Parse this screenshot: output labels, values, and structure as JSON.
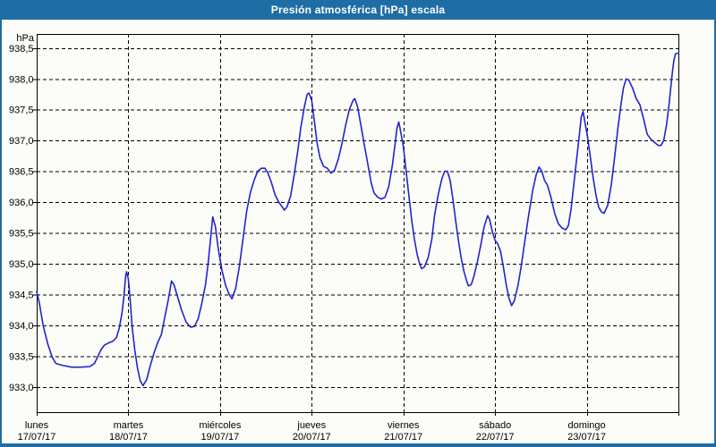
{
  "window": {
    "title": "Presión atmosférica [hPa] escala"
  },
  "colors": {
    "titlebar_bg": "#1E6EA5",
    "titlebar_text": "#FFFFFF",
    "window_border": "#1E6EA5",
    "chart_bg": "#FCFDF9",
    "line": "#2323CC",
    "grid": "#000000",
    "plot_border": "#000000",
    "axis_text": "#000000"
  },
  "chart_data": {
    "type": "line",
    "title": "Presión atmosférica [hPa] escala",
    "unit_label": "hPa",
    "xlabel": "",
    "ylabel": "hPa",
    "ylim": [
      932.59,
      938.73
    ],
    "grid": "dashed",
    "legend": "none",
    "yticks": [
      {
        "value": 938.5,
        "label": "938,5"
      },
      {
        "value": 938.0,
        "label": "938,0"
      },
      {
        "value": 937.5,
        "label": "937,5"
      },
      {
        "value": 937.0,
        "label": "937,0"
      },
      {
        "value": 936.5,
        "label": "936,5"
      },
      {
        "value": 936.0,
        "label": "936,0"
      },
      {
        "value": 935.5,
        "label": "935,5"
      },
      {
        "value": 935.0,
        "label": "935,0"
      },
      {
        "value": 934.5,
        "label": "934,5"
      },
      {
        "value": 934.0,
        "label": "934,0"
      },
      {
        "value": 933.5,
        "label": "933,5"
      },
      {
        "value": 933.0,
        "label": "933,0"
      }
    ],
    "days": [
      {
        "name": "lunes",
        "date": "17/07/17"
      },
      {
        "name": "martes",
        "date": "18/07/17"
      },
      {
        "name": "miércoles",
        "date": "19/07/17"
      },
      {
        "name": "jueves",
        "date": "20/07/17"
      },
      {
        "name": "viernes",
        "date": "21/07/17"
      },
      {
        "name": "sábado",
        "date": "22/07/17"
      },
      {
        "name": "domingo",
        "date": "23/07/17"
      }
    ],
    "series": [
      {
        "name": "Presión atmosférica",
        "points": [
          [
            0.0,
            934.55
          ],
          [
            0.03,
            934.35
          ],
          [
            0.07,
            934.0
          ],
          [
            0.12,
            933.7
          ],
          [
            0.17,
            933.48
          ],
          [
            0.21,
            933.38
          ],
          [
            0.28,
            933.35
          ],
          [
            0.38,
            933.32
          ],
          [
            0.48,
            933.32
          ],
          [
            0.58,
            933.33
          ],
          [
            0.63,
            933.38
          ],
          [
            0.67,
            933.5
          ],
          [
            0.7,
            933.6
          ],
          [
            0.74,
            933.68
          ],
          [
            0.78,
            933.71
          ],
          [
            0.83,
            933.74
          ],
          [
            0.87,
            933.8
          ],
          [
            0.9,
            933.95
          ],
          [
            0.93,
            934.2
          ],
          [
            0.95,
            934.45
          ],
          [
            0.97,
            934.8
          ],
          [
            0.98,
            934.87
          ],
          [
            1.0,
            934.75
          ],
          [
            1.02,
            934.4
          ],
          [
            1.04,
            934.0
          ],
          [
            1.07,
            933.6
          ],
          [
            1.1,
            933.3
          ],
          [
            1.13,
            933.1
          ],
          [
            1.16,
            933.02
          ],
          [
            1.2,
            933.12
          ],
          [
            1.24,
            933.35
          ],
          [
            1.28,
            933.55
          ],
          [
            1.32,
            933.72
          ],
          [
            1.36,
            933.85
          ],
          [
            1.4,
            934.15
          ],
          [
            1.44,
            934.45
          ],
          [
            1.47,
            934.72
          ],
          [
            1.5,
            934.65
          ],
          [
            1.54,
            934.45
          ],
          [
            1.58,
            934.25
          ],
          [
            1.63,
            934.05
          ],
          [
            1.68,
            933.97
          ],
          [
            1.72,
            933.98
          ],
          [
            1.76,
            934.1
          ],
          [
            1.8,
            934.35
          ],
          [
            1.84,
            934.65
          ],
          [
            1.87,
            935.0
          ],
          [
            1.9,
            935.45
          ],
          [
            1.92,
            935.76
          ],
          [
            1.95,
            935.6
          ],
          [
            1.98,
            935.25
          ],
          [
            2.02,
            934.9
          ],
          [
            2.06,
            934.65
          ],
          [
            2.1,
            934.5
          ],
          [
            2.13,
            934.43
          ],
          [
            2.17,
            934.6
          ],
          [
            2.21,
            934.95
          ],
          [
            2.25,
            935.4
          ],
          [
            2.29,
            935.85
          ],
          [
            2.33,
            936.15
          ],
          [
            2.37,
            936.35
          ],
          [
            2.41,
            936.5
          ],
          [
            2.45,
            936.55
          ],
          [
            2.49,
            936.55
          ],
          [
            2.52,
            936.48
          ],
          [
            2.56,
            936.32
          ],
          [
            2.6,
            936.12
          ],
          [
            2.64,
            936.0
          ],
          [
            2.68,
            935.92
          ],
          [
            2.7,
            935.87
          ],
          [
            2.73,
            935.92
          ],
          [
            2.77,
            936.1
          ],
          [
            2.81,
            936.45
          ],
          [
            2.85,
            936.85
          ],
          [
            2.88,
            937.2
          ],
          [
            2.92,
            937.55
          ],
          [
            2.95,
            937.75
          ],
          [
            2.97,
            937.77
          ],
          [
            3.0,
            937.65
          ],
          [
            3.03,
            937.3
          ],
          [
            3.06,
            936.95
          ],
          [
            3.09,
            936.72
          ],
          [
            3.13,
            936.58
          ],
          [
            3.17,
            936.55
          ],
          [
            3.21,
            936.47
          ],
          [
            3.25,
            936.52
          ],
          [
            3.29,
            936.7
          ],
          [
            3.33,
            936.95
          ],
          [
            3.37,
            937.25
          ],
          [
            3.41,
            937.5
          ],
          [
            3.45,
            937.65
          ],
          [
            3.47,
            937.68
          ],
          [
            3.5,
            937.55
          ],
          [
            3.53,
            937.3
          ],
          [
            3.56,
            937.05
          ],
          [
            3.59,
            936.8
          ],
          [
            3.62,
            936.55
          ],
          [
            3.65,
            936.3
          ],
          [
            3.68,
            936.15
          ],
          [
            3.72,
            936.08
          ],
          [
            3.76,
            936.05
          ],
          [
            3.8,
            936.08
          ],
          [
            3.84,
            936.25
          ],
          [
            3.88,
            936.6
          ],
          [
            3.91,
            936.95
          ],
          [
            3.93,
            937.2
          ],
          [
            3.95,
            937.3
          ],
          [
            3.97,
            937.15
          ],
          [
            4.0,
            936.9
          ],
          [
            4.03,
            936.5
          ],
          [
            4.06,
            936.1
          ],
          [
            4.09,
            935.72
          ],
          [
            4.12,
            935.4
          ],
          [
            4.15,
            935.15
          ],
          [
            4.18,
            934.98
          ],
          [
            4.2,
            934.92
          ],
          [
            4.23,
            934.95
          ],
          [
            4.27,
            935.1
          ],
          [
            4.31,
            935.4
          ],
          [
            4.34,
            935.78
          ],
          [
            4.38,
            936.12
          ],
          [
            4.42,
            936.38
          ],
          [
            4.45,
            936.5
          ],
          [
            4.48,
            936.5
          ],
          [
            4.51,
            936.35
          ],
          [
            4.54,
            936.05
          ],
          [
            4.57,
            935.7
          ],
          [
            4.6,
            935.38
          ],
          [
            4.63,
            935.1
          ],
          [
            4.66,
            934.88
          ],
          [
            4.69,
            934.72
          ],
          [
            4.71,
            934.64
          ],
          [
            4.74,
            934.66
          ],
          [
            4.77,
            934.8
          ],
          [
            4.81,
            935.05
          ],
          [
            4.85,
            935.35
          ],
          [
            4.88,
            935.6
          ],
          [
            4.92,
            935.78
          ],
          [
            4.94,
            935.72
          ],
          [
            4.97,
            935.52
          ],
          [
            5.0,
            935.38
          ],
          [
            5.03,
            935.32
          ],
          [
            5.06,
            935.2
          ],
          [
            5.09,
            934.95
          ],
          [
            5.12,
            934.68
          ],
          [
            5.15,
            934.45
          ],
          [
            5.18,
            934.32
          ],
          [
            5.21,
            934.4
          ],
          [
            5.25,
            934.65
          ],
          [
            5.29,
            935.0
          ],
          [
            5.33,
            935.42
          ],
          [
            5.37,
            935.82
          ],
          [
            5.41,
            936.18
          ],
          [
            5.45,
            936.45
          ],
          [
            5.48,
            936.57
          ],
          [
            5.51,
            936.5
          ],
          [
            5.54,
            936.35
          ],
          [
            5.57,
            936.28
          ],
          [
            5.61,
            936.08
          ],
          [
            5.65,
            935.82
          ],
          [
            5.69,
            935.65
          ],
          [
            5.73,
            935.58
          ],
          [
            5.77,
            935.55
          ],
          [
            5.8,
            935.62
          ],
          [
            5.83,
            935.9
          ],
          [
            5.86,
            936.3
          ],
          [
            5.89,
            936.7
          ],
          [
            5.92,
            937.1
          ],
          [
            5.94,
            937.38
          ],
          [
            5.96,
            937.47
          ],
          [
            5.98,
            937.3
          ],
          [
            6.01,
            937.05
          ],
          [
            6.04,
            936.72
          ],
          [
            6.07,
            936.4
          ],
          [
            6.1,
            936.12
          ],
          [
            6.13,
            935.92
          ],
          [
            6.16,
            935.84
          ],
          [
            6.19,
            935.82
          ],
          [
            6.23,
            935.95
          ],
          [
            6.27,
            936.3
          ],
          [
            6.31,
            936.8
          ],
          [
            6.34,
            937.2
          ],
          [
            6.37,
            937.55
          ],
          [
            6.4,
            937.85
          ],
          [
            6.43,
            938.0
          ],
          [
            6.46,
            937.98
          ],
          [
            6.5,
            937.85
          ],
          [
            6.54,
            937.68
          ],
          [
            6.58,
            937.58
          ],
          [
            6.62,
            937.35
          ],
          [
            6.66,
            937.1
          ],
          [
            6.7,
            937.02
          ],
          [
            6.74,
            936.97
          ],
          [
            6.78,
            936.92
          ],
          [
            6.81,
            936.92
          ],
          [
            6.84,
            937.0
          ],
          [
            6.87,
            937.25
          ],
          [
            6.9,
            937.62
          ],
          [
            6.93,
            938.05
          ],
          [
            6.95,
            938.3
          ],
          [
            6.97,
            938.41
          ],
          [
            7.0,
            938.42
          ]
        ]
      }
    ]
  }
}
